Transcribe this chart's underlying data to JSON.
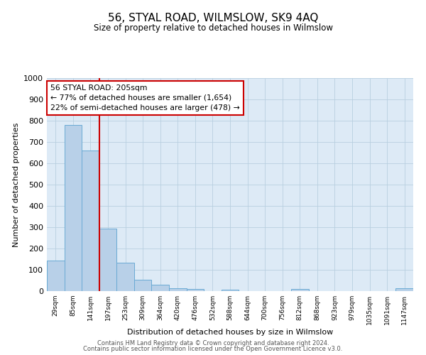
{
  "title": "56, STYAL ROAD, WILMSLOW, SK9 4AQ",
  "subtitle": "Size of property relative to detached houses in Wilmslow",
  "xlabel": "Distribution of detached houses by size in Wilmslow",
  "ylabel": "Number of detached properties",
  "bin_labels": [
    "29sqm",
    "85sqm",
    "141sqm",
    "197sqm",
    "253sqm",
    "309sqm",
    "364sqm",
    "420sqm",
    "476sqm",
    "532sqm",
    "588sqm",
    "644sqm",
    "700sqm",
    "756sqm",
    "812sqm",
    "868sqm",
    "923sqm",
    "979sqm",
    "1035sqm",
    "1091sqm",
    "1147sqm"
  ],
  "bar_heights": [
    145,
    780,
    660,
    295,
    135,
    55,
    30,
    15,
    10,
    0,
    7,
    0,
    0,
    0,
    10,
    0,
    0,
    0,
    0,
    0,
    15
  ],
  "bar_color": "#b8d0e8",
  "bar_edge_color": "#6aaad4",
  "vline_color": "#cc0000",
  "vline_bin_index": 3,
  "annotation_line1": "56 STYAL ROAD: 205sqm",
  "annotation_line2": "← 77% of detached houses are smaller (1,654)",
  "annotation_line3": "22% of semi-detached houses are larger (478) →",
  "annotation_box_facecolor": "#ffffff",
  "annotation_box_edgecolor": "#cc0000",
  "ylim": [
    0,
    1000
  ],
  "yticks": [
    0,
    100,
    200,
    300,
    400,
    500,
    600,
    700,
    800,
    900,
    1000
  ],
  "footer_line1": "Contains HM Land Registry data © Crown copyright and database right 2024.",
  "footer_line2": "Contains public sector information licensed under the Open Government Licence v3.0.",
  "plot_bg_color": "#ddeaf6",
  "grid_color": "#b8cfe0"
}
